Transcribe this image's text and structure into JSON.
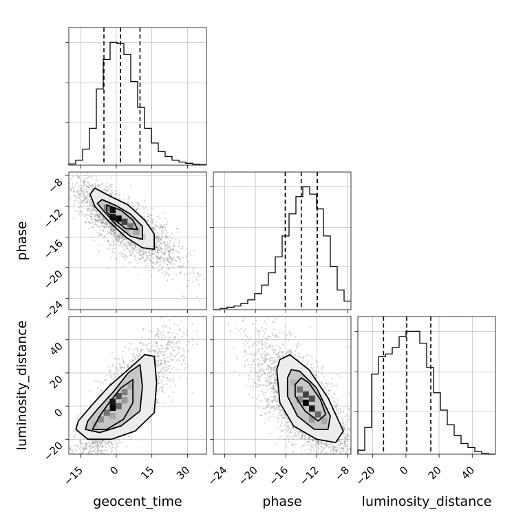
{
  "chart_data": {
    "type": "corner",
    "parameters": [
      "geocent_time",
      "phase",
      "luminosity_distance"
    ],
    "axis_labels": {
      "bottom": [
        "geocent_time",
        "phase",
        "luminosity_distance"
      ],
      "left": [
        "phase",
        "luminosity_distance"
      ]
    },
    "ranges": {
      "geocent_time": [
        -20,
        38
      ],
      "phase": [
        -25.5,
        -7.5
      ],
      "luminosity_distance": [
        -29,
        54
      ]
    },
    "ticks": {
      "geocent_time": [
        -15,
        0,
        15,
        30
      ],
      "phase": [
        -24,
        -20,
        -16,
        -12,
        -8
      ],
      "luminosity_distance": [
        -20,
        0,
        20,
        40
      ]
    },
    "tick_labels": {
      "geocent_time": [
        "−15",
        "0",
        "15",
        "30"
      ],
      "phase": [
        "−24",
        "−20",
        "−16",
        "−12",
        "−8"
      ],
      "luminosity_distance": [
        "−20",
        "0",
        "20",
        "40"
      ]
    },
    "quantiles": {
      "geocent_time": [
        -5.2,
        1.8,
        10.0
      ],
      "phase": [
        -16.1,
        -14.0,
        -11.9
      ],
      "luminosity_distance": [
        -13.5,
        0.5,
        15.0
      ]
    },
    "histograms": {
      "geocent_time": {
        "bin_edges": [
          -20,
          -17.1,
          -14.2,
          -11.3,
          -8.4,
          -5.5,
          -2.6,
          0.3,
          3.2,
          6.1,
          9.0,
          11.9,
          14.8,
          17.7,
          20.6,
          23.5,
          26.4,
          29.3,
          32.2,
          35.1,
          38
        ],
        "counts": [
          0.01,
          0.04,
          0.13,
          0.3,
          0.62,
          0.86,
          1.0,
          0.99,
          0.9,
          0.68,
          0.47,
          0.3,
          0.18,
          0.11,
          0.07,
          0.04,
          0.025,
          0.015,
          0.008,
          0.004
        ]
      },
      "phase": {
        "bin_edges": [
          -25.5,
          -24.6,
          -23.7,
          -22.8,
          -21.9,
          -21.0,
          -20.1,
          -19.2,
          -18.3,
          -17.4,
          -16.5,
          -15.6,
          -14.7,
          -13.8,
          -12.9,
          -12.0,
          -11.1,
          -10.2,
          -9.3,
          -8.4,
          -7.5
        ],
        "counts": [
          0.0,
          0.01,
          0.02,
          0.03,
          0.05,
          0.08,
          0.13,
          0.2,
          0.3,
          0.43,
          0.6,
          0.78,
          0.92,
          1.0,
          0.94,
          0.82,
          0.6,
          0.35,
          0.16,
          0.07
        ]
      },
      "luminosity_distance": {
        "bin_edges": [
          -29,
          -24.85,
          -20.7,
          -16.55,
          -12.4,
          -8.25,
          -4.1,
          0.05,
          4.2,
          8.35,
          12.5,
          16.65,
          20.8,
          24.95,
          29.1,
          33.25,
          37.4,
          41.55,
          45.7,
          49.85,
          54
        ],
        "counts": [
          0.03,
          0.2,
          0.6,
          0.73,
          0.75,
          0.8,
          0.88,
          0.92,
          0.92,
          0.83,
          0.65,
          0.46,
          0.33,
          0.22,
          0.14,
          0.08,
          0.05,
          0.02,
          0.005,
          0.0
        ]
      }
    },
    "pairs": [
      {
        "x": "geocent_time",
        "y": "phase",
        "correlation": -0.78,
        "contours": [
          [
            [
              -9,
              -9.6
            ],
            [
              -3,
              -10.6
            ],
            [
              5,
              -11.8
            ],
            [
              12,
              -13.8
            ],
            [
              16,
              -15.6
            ],
            [
              16,
              -17.6
            ],
            [
              11,
              -17.4
            ],
            [
              4,
              -16.0
            ],
            [
              -3,
              -14.0
            ],
            [
              -9,
              -12.0
            ],
            [
              -11,
              -10.4
            ]
          ],
          [
            [
              -6,
              -11.1
            ],
            [
              0,
              -11.9
            ],
            [
              6,
              -13.0
            ],
            [
              11,
              -14.6
            ],
            [
              11,
              -16.3
            ],
            [
              6,
              -15.9
            ],
            [
              0,
              -14.4
            ],
            [
              -5,
              -12.7
            ],
            [
              -8,
              -11.6
            ]
          ],
          [
            [
              -4,
              -11.8
            ],
            [
              2,
              -12.5
            ],
            [
              7,
              -13.8
            ],
            [
              9,
              -15.0
            ],
            [
              4,
              -14.9
            ],
            [
              -1,
              -13.7
            ],
            [
              -4,
              -12.7
            ]
          ]
        ],
        "hist2d_cells": [
          [
            -1.5,
            -12.5,
            0.95
          ],
          [
            -1.5,
            -13.4,
            0.9
          ],
          [
            1.0,
            -13.6,
            1.0
          ],
          [
            3.5,
            -14.0,
            0.75
          ],
          [
            6.0,
            -14.6,
            0.55
          ],
          [
            8.5,
            -15.3,
            0.35
          ],
          [
            -4.0,
            -12.2,
            0.5
          ],
          [
            11.0,
            -16.0,
            0.2
          ],
          [
            4.0,
            -15.1,
            0.3
          ],
          [
            -1.0,
            -14.3,
            0.35
          ]
        ]
      },
      {
        "x": "geocent_time",
        "y": "luminosity_distance",
        "correlation": 0.82,
        "contours": [
          [
            [
              -17,
              -14
            ],
            [
              -12,
              -20
            ],
            [
              -2,
              -20
            ],
            [
              8,
              -15
            ],
            [
              16,
              -4
            ],
            [
              17,
              14
            ],
            [
              16,
              30
            ],
            [
              12,
              31
            ],
            [
              5,
              22
            ],
            [
              -3,
              12
            ],
            [
              -10,
              1
            ],
            [
              -16,
              -9
            ]
          ],
          [
            [
              -13,
              -14
            ],
            [
              -7,
              -16
            ],
            [
              2,
              -12
            ],
            [
              10,
              -3
            ],
            [
              11,
              12
            ],
            [
              10,
              25
            ],
            [
              5,
              20
            ],
            [
              -1,
              9
            ],
            [
              -8,
              -2
            ],
            [
              -12,
              -9
            ]
          ],
          [
            [
              -10,
              -14
            ],
            [
              -4,
              -14
            ],
            [
              3,
              -8
            ],
            [
              7,
              2
            ],
            [
              7,
              16
            ],
            [
              2,
              11
            ],
            [
              -3,
              2
            ],
            [
              -7,
              -6
            ]
          ]
        ],
        "hist2d_cells": [
          [
            -1.5,
            -1.0,
            1.0
          ],
          [
            -1.5,
            2.5,
            0.9
          ],
          [
            1.0,
            6.0,
            0.7
          ],
          [
            1.0,
            0.0,
            0.6
          ],
          [
            3.5,
            8.5,
            0.5
          ],
          [
            -4.0,
            -4.0,
            0.55
          ],
          [
            -6.5,
            -8.0,
            0.45
          ],
          [
            6.0,
            12.0,
            0.35
          ],
          [
            -9.0,
            -11.0,
            0.3
          ],
          [
            3.5,
            3.5,
            0.4
          ],
          [
            -1.5,
            -6.0,
            0.35
          ]
        ]
      },
      {
        "x": "phase",
        "y": "luminosity_distance",
        "correlation": -0.7,
        "contours": [
          [
            [
              -17.2,
              22
            ],
            [
              -16.8,
              28
            ],
            [
              -15.5,
              31
            ],
            [
              -13,
              22
            ],
            [
              -10.5,
              5
            ],
            [
              -8.5,
              -15
            ],
            [
              -9.5,
              -22
            ],
            [
              -12,
              -20
            ],
            [
              -15,
              -12
            ],
            [
              -16.8,
              2
            ]
          ],
          [
            [
              -15.8,
              17
            ],
            [
              -15.3,
              22
            ],
            [
              -14.2,
              21
            ],
            [
              -12,
              11
            ],
            [
              -10.2,
              -6
            ],
            [
              -10.5,
              -14
            ],
            [
              -12.3,
              -14
            ],
            [
              -14.5,
              -6
            ],
            [
              -15.8,
              6
            ]
          ],
          [
            [
              -14.8,
              13
            ],
            [
              -14,
              17
            ],
            [
              -13,
              14
            ],
            [
              -11.5,
              4
            ],
            [
              -10.8,
              -5
            ],
            [
              -11.8,
              -9
            ],
            [
              -13.5,
              -3
            ],
            [
              -14.8,
              6
            ]
          ]
        ],
        "hist2d_cells": [
          [
            -13.4,
            2.0,
            1.0
          ],
          [
            -12.6,
            -1.5,
            0.9
          ],
          [
            -13.4,
            7.0,
            0.75
          ],
          [
            -14.2,
            10.0,
            0.55
          ],
          [
            -11.8,
            -5.0,
            0.6
          ],
          [
            -12.6,
            4.5,
            0.7
          ],
          [
            -14.2,
            4.0,
            0.5
          ],
          [
            -11.0,
            -9.0,
            0.35
          ],
          [
            -15.0,
            14.0,
            0.3
          ],
          [
            -12.6,
            -8.0,
            0.4
          ]
        ]
      }
    ]
  }
}
